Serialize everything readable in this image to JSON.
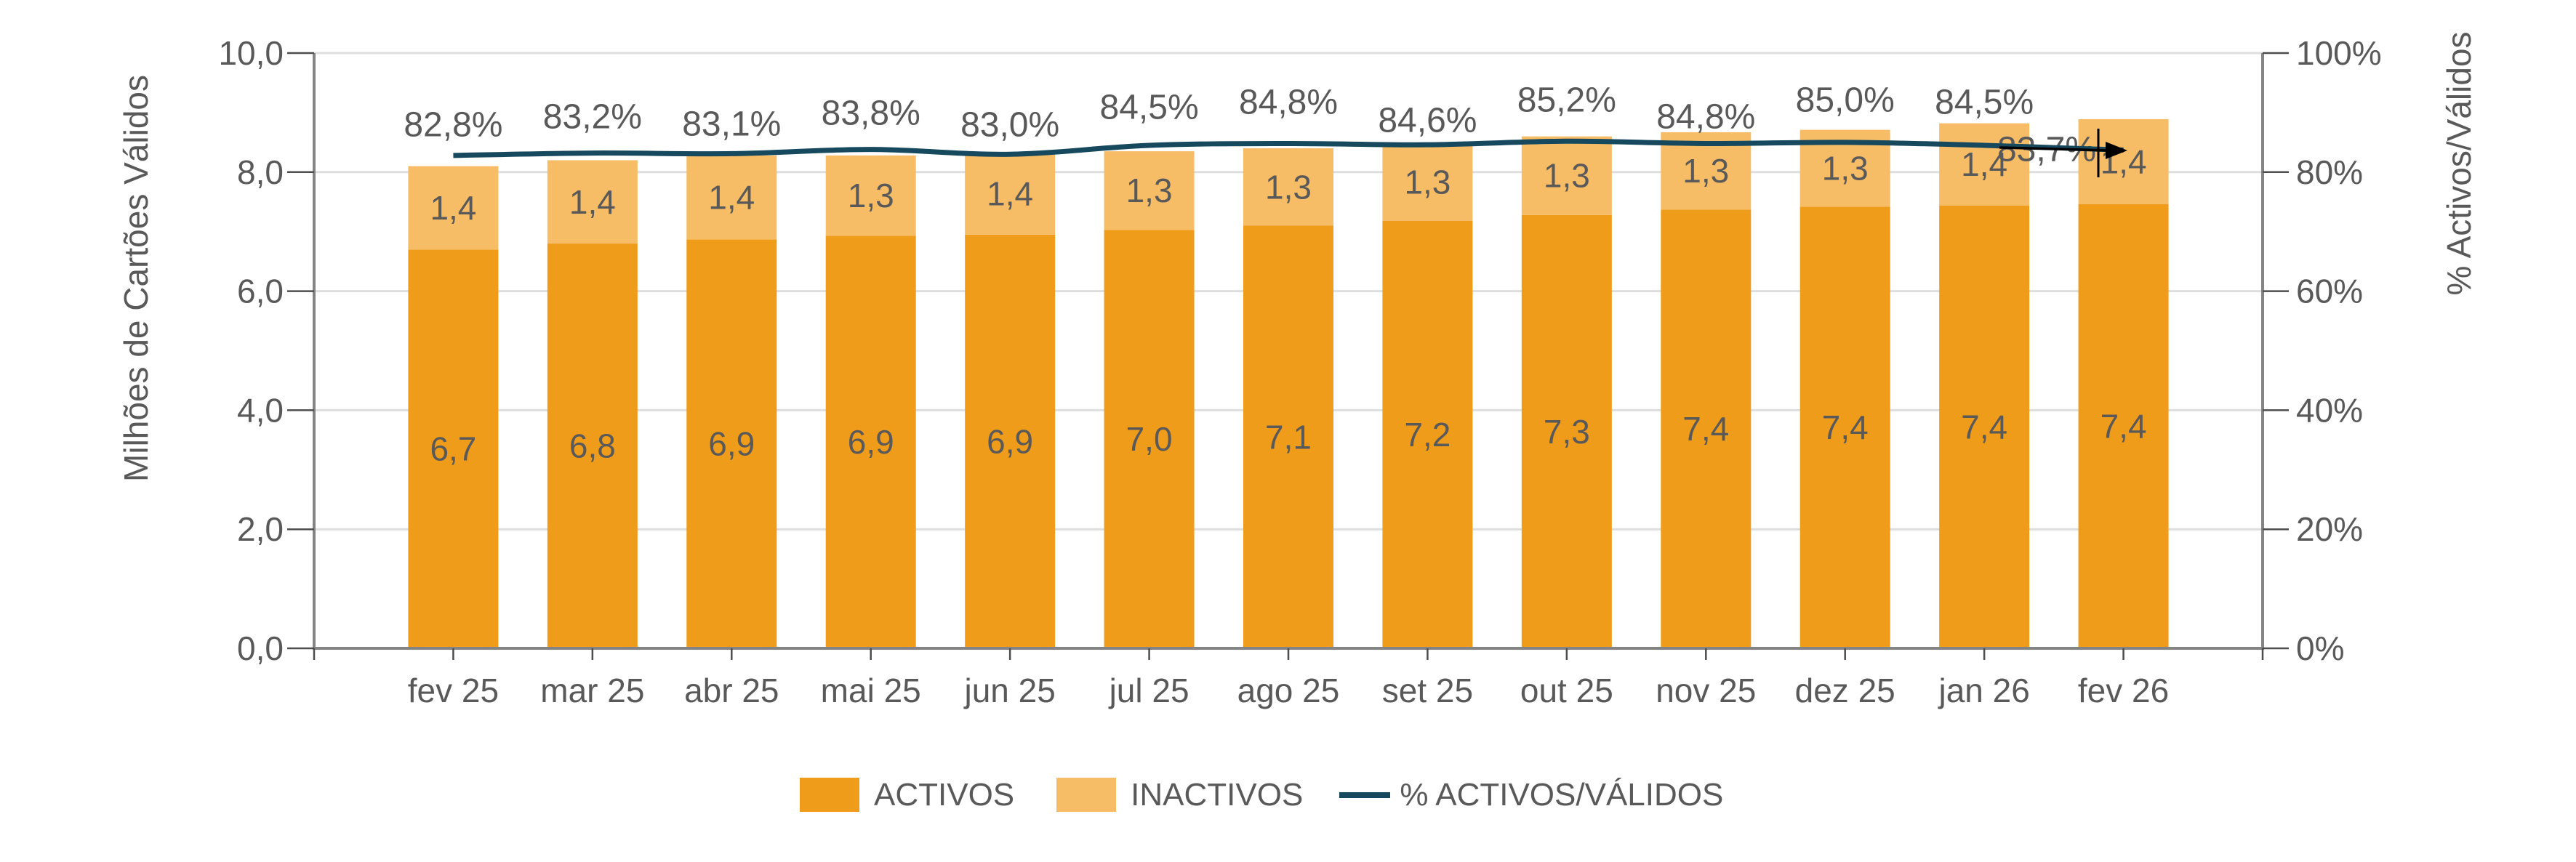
{
  "chart_data": {
    "type": "combo_stacked_bar_line",
    "categories": [
      "fev 25",
      "mar 25",
      "abr 25",
      "mai 25",
      "jun 25",
      "jul 25",
      "ago 25",
      "set 25",
      "out 25",
      "nov 25",
      "dez 25",
      "jan 26",
      "fev 26"
    ],
    "series": [
      {
        "name": "ACTIVOS",
        "type": "bar",
        "color": "#F09C1B",
        "labels": [
          "6,7",
          "6,8",
          "6,9",
          "6,9",
          "6,9",
          "7,0",
          "7,1",
          "7,2",
          "7,3",
          "7,4",
          "7,4",
          "7,4",
          "7,4"
        ],
        "values": [
          6.7,
          6.8,
          6.9,
          6.9,
          6.9,
          7.0,
          7.1,
          7.2,
          7.3,
          7.4,
          7.4,
          7.4,
          7.4
        ],
        "values_est": [
          6.7,
          6.8,
          6.87,
          6.93,
          6.95,
          7.03,
          7.1,
          7.18,
          7.28,
          7.37,
          7.42,
          7.44,
          7.46
        ]
      },
      {
        "name": "INACTIVOS",
        "type": "bar",
        "color": "#F6BC66",
        "labels": [
          "1,4",
          "1,4",
          "1,4",
          "1,3",
          "1,4",
          "1,3",
          "1,3",
          "1,3",
          "1,3",
          "1,3",
          "1,3",
          "1,4",
          "1,4"
        ],
        "values": [
          1.4,
          1.4,
          1.4,
          1.3,
          1.4,
          1.3,
          1.3,
          1.3,
          1.3,
          1.3,
          1.3,
          1.4,
          1.4
        ],
        "values_est": [
          1.4,
          1.4,
          1.41,
          1.35,
          1.38,
          1.32,
          1.3,
          1.31,
          1.32,
          1.3,
          1.29,
          1.38,
          1.43
        ]
      },
      {
        "name": "% ACTIVOS/VÁLIDOS",
        "type": "line",
        "axis": "secondary",
        "color": "#17495E",
        "labels": [
          "82,8%",
          "83,2%",
          "83,1%",
          "83,8%",
          "83,0%",
          "84,5%",
          "84,8%",
          "84,6%",
          "85,2%",
          "84,8%",
          "85,0%",
          "84,5%",
          "83,7%"
        ],
        "values": [
          82.8,
          83.2,
          83.1,
          83.8,
          83.0,
          84.5,
          84.8,
          84.6,
          85.2,
          84.8,
          85.0,
          84.5,
          83.7
        ]
      }
    ],
    "left_axis": {
      "title": "Milhões de Cartões Válidos",
      "ticks": [
        "0,0",
        "2,0",
        "4,0",
        "6,0",
        "8,0",
        "10,0"
      ],
      "range": [
        0,
        10
      ]
    },
    "right_axis": {
      "title": "% Activos/Válidos",
      "ticks": [
        "0%",
        "20%",
        "40%",
        "60%",
        "80%",
        "100%"
      ],
      "range": [
        0,
        100
      ]
    },
    "annotation": {
      "text": "83,7%",
      "shape": "arrow-right"
    },
    "legend": {
      "items": [
        "ACTIVOS",
        "INACTIVOS",
        "% ACTIVOS/VÁLIDOS"
      ],
      "position": "bottom"
    },
    "grid": true
  },
  "colors": {
    "grid": "#DEDEDE",
    "axis": "#848484",
    "tick": "#4D4D4D",
    "text": "#595959",
    "annotation": "#000000",
    "background": "#FFFFFF"
  }
}
